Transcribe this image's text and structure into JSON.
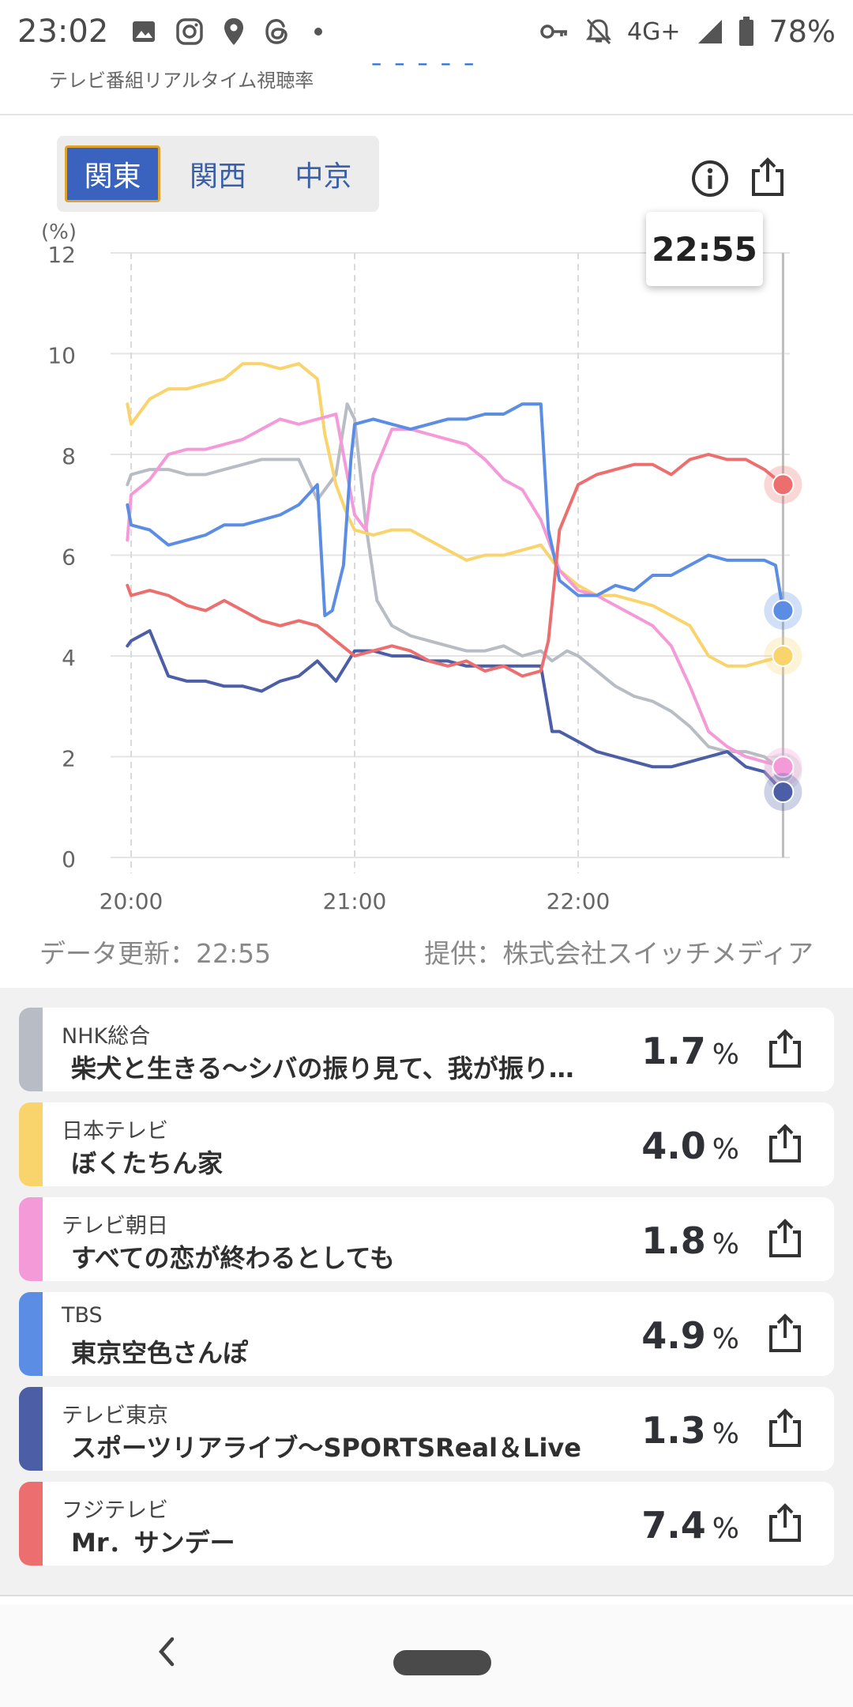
{
  "status_bar": {
    "time": "23:02",
    "notification_icons": [
      "image-icon",
      "instagram-icon",
      "location-icon",
      "threads-icon",
      "dot-icon"
    ],
    "network": "4G+",
    "battery": "78%"
  },
  "header": {
    "cut_title": "ｰ ｰ ｰ ｰ ｰ",
    "subtitle": "テレビ番組リアルタイム視聴率"
  },
  "region_tabs": [
    {
      "label": "関東",
      "active": true
    },
    {
      "label": "関西",
      "active": false
    },
    {
      "label": "中京",
      "active": false
    }
  ],
  "chart_tools": {
    "info_icon": "info-icon",
    "share_icon": "share-icon"
  },
  "tooltip_time": "22:55",
  "chart_data": {
    "type": "line",
    "ylabel": "(%)",
    "ylim": [
      0,
      12
    ],
    "yticks": [
      "0",
      "2",
      "4",
      "6",
      "8",
      "10",
      "12"
    ],
    "xticks": [
      "20:00",
      "21:00",
      "22:00"
    ],
    "grid": true,
    "marker_time": "22:55",
    "series": [
      {
        "name": "NHK総合",
        "color": "#b8bcc4",
        "x": [
          "19:59",
          "20:00",
          "20:05",
          "20:10",
          "20:15",
          "20:20",
          "20:25",
          "20:30",
          "20:35",
          "20:40",
          "20:45",
          "20:50",
          "20:55",
          "20:58",
          "21:00",
          "21:03",
          "21:06",
          "21:10",
          "21:15",
          "21:20",
          "21:25",
          "21:30",
          "21:35",
          "21:40",
          "21:45",
          "21:50",
          "21:53",
          "21:57",
          "22:00",
          "22:05",
          "22:10",
          "22:15",
          "22:20",
          "22:25",
          "22:30",
          "22:35",
          "22:40",
          "22:45",
          "22:50",
          "22:55"
        ],
        "y": [
          7.4,
          7.6,
          7.7,
          7.7,
          7.6,
          7.6,
          7.7,
          7.8,
          7.9,
          7.9,
          7.9,
          7.1,
          7.6,
          9.0,
          8.7,
          6.6,
          5.1,
          4.6,
          4.4,
          4.3,
          4.2,
          4.1,
          4.1,
          4.2,
          4.0,
          4.1,
          3.9,
          4.1,
          4.0,
          3.7,
          3.4,
          3.2,
          3.1,
          2.9,
          2.6,
          2.2,
          2.1,
          2.1,
          2.0,
          1.7
        ]
      },
      {
        "name": "日本テレビ",
        "color": "#f9d36b",
        "x": [
          "19:59",
          "20:00",
          "20:05",
          "20:10",
          "20:15",
          "20:20",
          "20:25",
          "20:30",
          "20:35",
          "20:40",
          "20:45",
          "20:50",
          "20:52",
          "20:55",
          "20:58",
          "21:00",
          "21:05",
          "21:10",
          "21:15",
          "21:20",
          "21:25",
          "21:30",
          "21:35",
          "21:40",
          "21:45",
          "21:50",
          "21:55",
          "22:00",
          "22:05",
          "22:10",
          "22:15",
          "22:20",
          "22:25",
          "22:30",
          "22:35",
          "22:40",
          "22:45",
          "22:50",
          "22:55"
        ],
        "y": [
          9.0,
          8.6,
          9.1,
          9.3,
          9.3,
          9.4,
          9.5,
          9.8,
          9.8,
          9.7,
          9.8,
          9.5,
          8.4,
          7.4,
          6.8,
          6.5,
          6.4,
          6.5,
          6.5,
          6.3,
          6.1,
          5.9,
          6.0,
          6.0,
          6.1,
          6.2,
          5.7,
          5.4,
          5.2,
          5.2,
          5.1,
          5.0,
          4.8,
          4.6,
          4.0,
          3.8,
          3.8,
          3.9,
          4.0
        ]
      },
      {
        "name": "テレビ朝日",
        "color": "#f49ad8",
        "x": [
          "19:59",
          "20:00",
          "20:05",
          "20:10",
          "20:15",
          "20:20",
          "20:25",
          "20:30",
          "20:35",
          "20:40",
          "20:45",
          "20:50",
          "20:55",
          "21:00",
          "21:03",
          "21:05",
          "21:10",
          "21:15",
          "21:20",
          "21:25",
          "21:30",
          "21:35",
          "21:40",
          "21:45",
          "21:50",
          "21:55",
          "22:00",
          "22:05",
          "22:10",
          "22:15",
          "22:20",
          "22:25",
          "22:30",
          "22:35",
          "22:40",
          "22:45",
          "22:50",
          "22:55"
        ],
        "y": [
          6.3,
          7.2,
          7.5,
          8.0,
          8.1,
          8.1,
          8.2,
          8.3,
          8.5,
          8.7,
          8.6,
          8.7,
          8.8,
          6.8,
          6.5,
          7.6,
          8.5,
          8.5,
          8.4,
          8.3,
          8.2,
          7.9,
          7.5,
          7.3,
          6.7,
          5.7,
          5.3,
          5.2,
          5.0,
          4.8,
          4.6,
          4.2,
          3.4,
          2.5,
          2.2,
          2.0,
          1.9,
          1.8
        ]
      },
      {
        "name": "TBS",
        "color": "#5b8de4",
        "x": [
          "19:59",
          "20:00",
          "20:05",
          "20:10",
          "20:15",
          "20:20",
          "20:25",
          "20:30",
          "20:35",
          "20:40",
          "20:45",
          "20:50",
          "20:52",
          "20:54",
          "20:57",
          "20:59",
          "21:00",
          "21:05",
          "21:10",
          "21:15",
          "21:20",
          "21:25",
          "21:30",
          "21:35",
          "21:40",
          "21:45",
          "21:50",
          "21:52",
          "21:55",
          "22:00",
          "22:05",
          "22:10",
          "22:15",
          "22:20",
          "22:25",
          "22:30",
          "22:35",
          "22:40",
          "22:45",
          "22:50",
          "22:53",
          "22:55"
        ],
        "y": [
          7.0,
          6.6,
          6.5,
          6.2,
          6.3,
          6.4,
          6.6,
          6.6,
          6.7,
          6.8,
          7.0,
          7.4,
          4.8,
          4.9,
          5.8,
          7.9,
          8.6,
          8.7,
          8.6,
          8.5,
          8.6,
          8.7,
          8.7,
          8.8,
          8.8,
          9.0,
          9.0,
          6.5,
          5.5,
          5.2,
          5.2,
          5.4,
          5.3,
          5.6,
          5.6,
          5.8,
          6.0,
          5.9,
          5.9,
          5.9,
          5.8,
          4.9
        ]
      },
      {
        "name": "テレビ東京",
        "color": "#4c5ea6",
        "x": [
          "19:59",
          "20:00",
          "20:05",
          "20:10",
          "20:15",
          "20:20",
          "20:25",
          "20:30",
          "20:35",
          "20:40",
          "20:45",
          "20:50",
          "20:55",
          "21:00",
          "21:05",
          "21:10",
          "21:15",
          "21:20",
          "21:25",
          "21:30",
          "21:35",
          "21:40",
          "21:45",
          "21:50",
          "21:53",
          "21:55",
          "22:00",
          "22:05",
          "22:10",
          "22:15",
          "22:20",
          "22:25",
          "22:30",
          "22:35",
          "22:40",
          "22:45",
          "22:50",
          "22:55"
        ],
        "y": [
          4.2,
          4.3,
          4.5,
          3.6,
          3.5,
          3.5,
          3.4,
          3.4,
          3.3,
          3.5,
          3.6,
          3.9,
          3.5,
          4.1,
          4.1,
          4.0,
          4.0,
          3.9,
          3.9,
          3.8,
          3.8,
          3.8,
          3.8,
          3.8,
          2.5,
          2.5,
          2.3,
          2.1,
          2.0,
          1.9,
          1.8,
          1.8,
          1.9,
          2.0,
          2.1,
          1.8,
          1.7,
          1.3
        ]
      },
      {
        "name": "フジテレビ",
        "color": "#ec6e6e",
        "x": [
          "19:59",
          "20:00",
          "20:05",
          "20:10",
          "20:15",
          "20:20",
          "20:25",
          "20:30",
          "20:35",
          "20:40",
          "20:45",
          "20:50",
          "20:55",
          "21:00",
          "21:05",
          "21:10",
          "21:15",
          "21:20",
          "21:25",
          "21:30",
          "21:35",
          "21:40",
          "21:45",
          "21:50",
          "21:52",
          "21:55",
          "22:00",
          "22:05",
          "22:10",
          "22:15",
          "22:20",
          "22:25",
          "22:30",
          "22:35",
          "22:40",
          "22:45",
          "22:50",
          "22:55"
        ],
        "y": [
          5.4,
          5.2,
          5.3,
          5.2,
          5.0,
          4.9,
          5.1,
          4.9,
          4.7,
          4.6,
          4.7,
          4.6,
          4.3,
          4.0,
          4.1,
          4.2,
          4.1,
          3.9,
          3.8,
          3.9,
          3.7,
          3.8,
          3.6,
          3.7,
          4.3,
          6.5,
          7.4,
          7.6,
          7.7,
          7.8,
          7.8,
          7.6,
          7.9,
          8.0,
          7.9,
          7.9,
          7.7,
          7.4
        ]
      }
    ]
  },
  "meta": {
    "updated": "データ更新：22:55",
    "provider": "提供：株式会社スイッチメディア"
  },
  "channels": [
    {
      "channel": "NHK総合",
      "program": "柴犬と生きる～シバの振り見て、我が振り…",
      "value": "1.7",
      "unit": "%",
      "color": "#b8bcc4"
    },
    {
      "channel": "日本テレビ",
      "program": "ぼくたちん家",
      "value": "4.0",
      "unit": "%",
      "color": "#f9d36b"
    },
    {
      "channel": "テレビ朝日",
      "program": "すべての恋が終わるとしても",
      "value": "1.8",
      "unit": "%",
      "color": "#f49ad8"
    },
    {
      "channel": "TBS",
      "program": "東京空色さんぽ",
      "value": "4.9",
      "unit": "%",
      "color": "#5b8de4"
    },
    {
      "channel": "テレビ東京",
      "program": "スポーツリアライブ～SPORTSReal＆Live",
      "value": "1.3",
      "unit": "%",
      "color": "#4c5ea6"
    },
    {
      "channel": "フジテレビ",
      "program": "Mr．サンデー",
      "value": "7.4",
      "unit": "%",
      "color": "#ec6e6e"
    }
  ]
}
